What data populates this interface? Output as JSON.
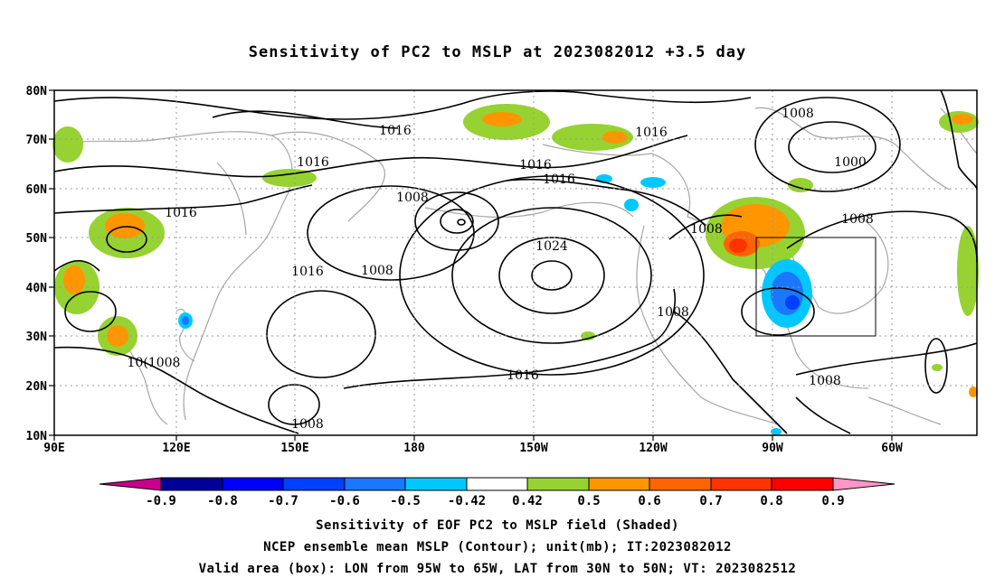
{
  "title": "Sensitivity of PC2 to MSLP at 2023082012 +3.5 day",
  "lon_labels": [
    "90E",
    "120E",
    "150E",
    "180",
    "150W",
    "120W",
    "90W",
    "60W"
  ],
  "lat_labels": [
    "80N",
    "70N",
    "60N",
    "50N",
    "40N",
    "30N",
    "20N",
    "10N"
  ],
  "contour_labels": [
    "1016",
    "1016",
    "1016",
    "1016",
    "1016",
    "1016",
    "1016",
    "1016",
    "1008",
    "1008",
    "1008",
    "1008",
    "1008",
    "1008",
    "1008",
    "1008",
    "1000",
    "1024",
    "10(1008"
  ],
  "colorbar": {
    "labels": [
      "-0.9",
      "-0.8",
      "-0.7",
      "-0.6",
      "-0.5",
      "-0.42",
      "0.42",
      "0.5",
      "0.6",
      "0.7",
      "0.8",
      "0.9"
    ],
    "colors": [
      "#000096",
      "#0000ff",
      "#0040ff",
      "#1a78ff",
      "#00c8ff",
      "#ffffff",
      "#96d232",
      "#ff9600",
      "#ff6400",
      "#ff3200",
      "#ff0000"
    ],
    "under_color": "#c8008c",
    "over_color": "#ff96c8"
  },
  "valid_box": {
    "lon_from": "95W",
    "lon_to": "65W",
    "lat_from": "30N",
    "lat_to": "50N"
  },
  "captions": [
    "Sensitivity of EOF PC2 to MSLP field (Shaded)",
    "NCEP ensemble mean MSLP (Contour); unit(mb); IT:2023082012",
    "Valid area (box): LON from 95W to 65W, LAT from 30N to 50N; VT: 2023082512"
  ],
  "colors": {
    "contour": "#000000",
    "coast": "#a0a0a0",
    "grid": "#999999"
  }
}
